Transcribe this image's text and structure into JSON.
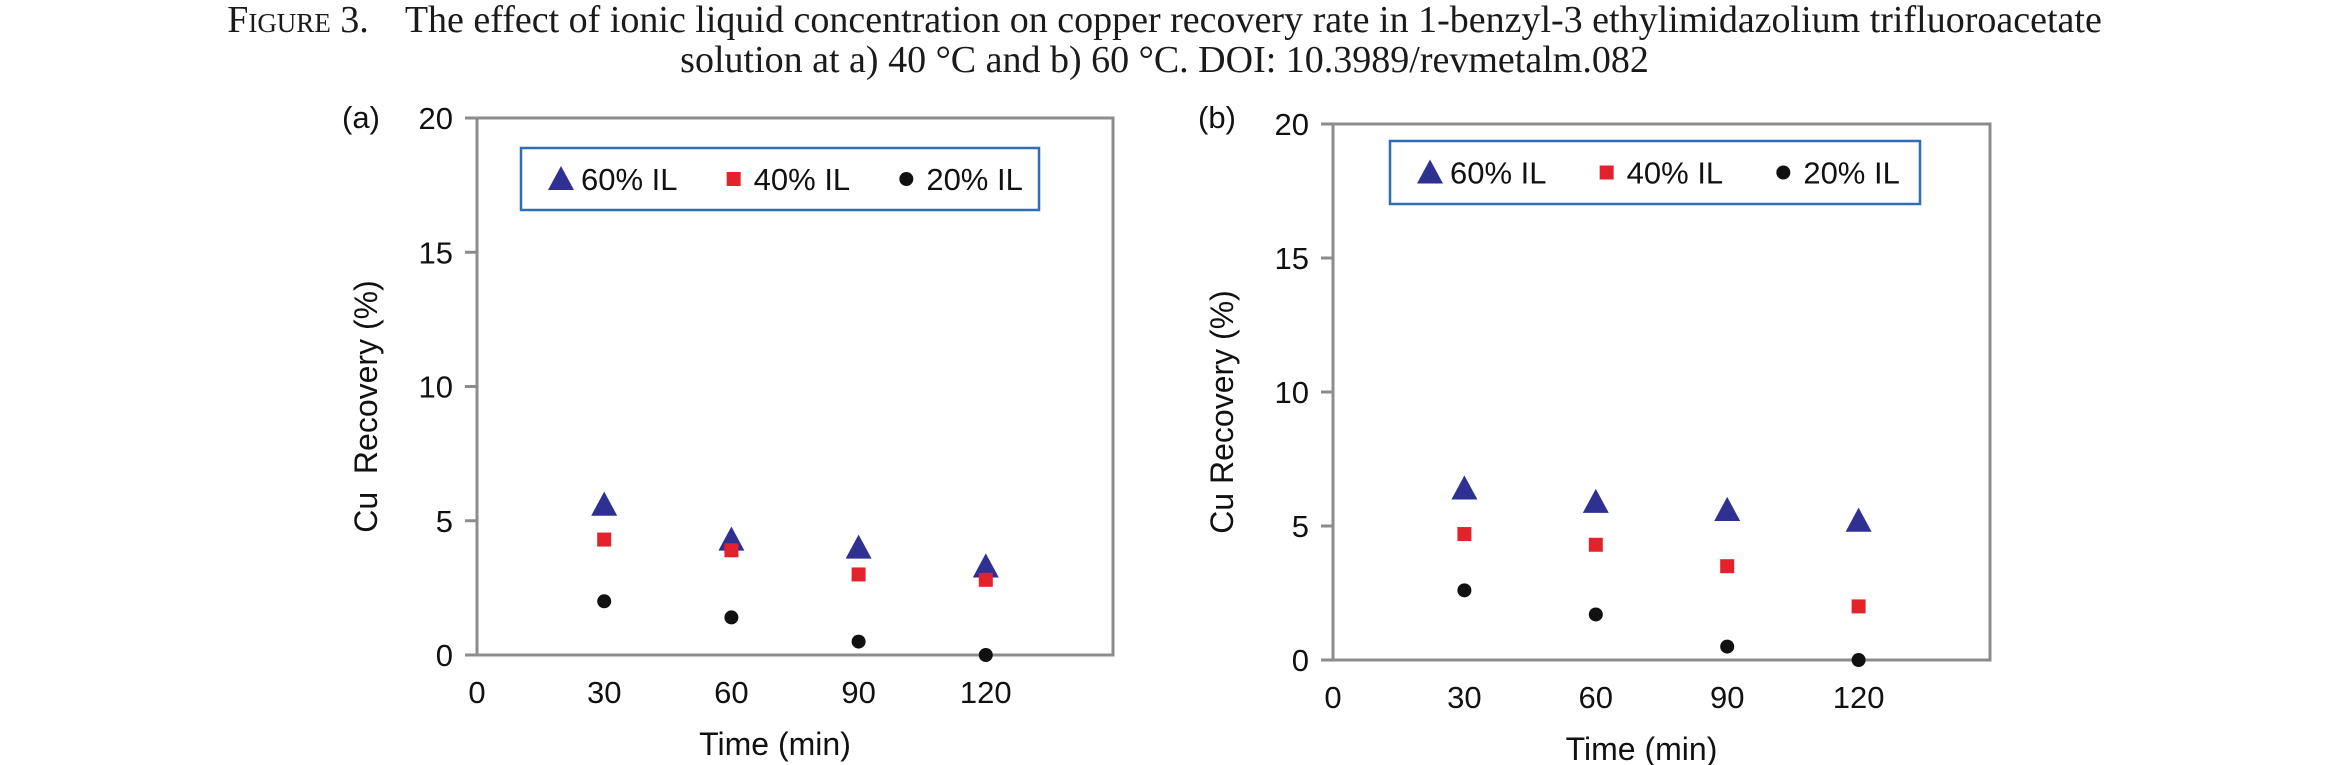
{
  "caption": {
    "label": "Figure 3.",
    "line1": "The effect of ionic liquid concentration on copper recovery rate in 1-benzyl-3 ethylimidazolium trifluoroacetate",
    "line2": "solution at a) 40 °C and b) 60 °C. DOI: 10.3989/revmetalm.082"
  },
  "colors": {
    "triangle": "#2e3192",
    "square": "#e3222c",
    "circle": "#111111",
    "axis": "#8c8c8c",
    "legend_border": "#2f6db4"
  },
  "chart_data": [
    {
      "type": "scatter",
      "panel_label": "(a)",
      "xlabel": "Time (min)",
      "ylabel": "Cu  Recovery (%)",
      "xlim": [
        0,
        150
      ],
      "ylim": [
        0,
        20
      ],
      "x_ticks": [
        "0",
        "30",
        "60",
        "90",
        "120"
      ],
      "y_ticks": [
        "0",
        "5",
        "10",
        "15",
        "20"
      ],
      "legend": "top, inside plot",
      "series": [
        {
          "name": "60% IL",
          "marker": "triangle",
          "x": [
            30,
            60,
            90,
            120
          ],
          "y": [
            5.6,
            4.3,
            4.0,
            3.3
          ]
        },
        {
          "name": "40% IL",
          "marker": "square",
          "x": [
            30,
            60,
            90,
            120
          ],
          "y": [
            4.3,
            3.9,
            3.0,
            2.8
          ]
        },
        {
          "name": "20% IL",
          "marker": "circle",
          "x": [
            30,
            60,
            90,
            120
          ],
          "y": [
            2.0,
            1.4,
            0.5,
            0.0
          ]
        }
      ]
    },
    {
      "type": "scatter",
      "panel_label": "(b)",
      "xlabel": "Time (min)",
      "ylabel": "Cu Recovery (%)",
      "xlim": [
        0,
        150
      ],
      "ylim": [
        0,
        20
      ],
      "x_ticks": [
        "0",
        "30",
        "60",
        "90",
        "120"
      ],
      "y_ticks": [
        "0",
        "5",
        "10",
        "15",
        "20"
      ],
      "legend": "top, inside plot",
      "series": [
        {
          "name": "60% IL",
          "marker": "triangle",
          "x": [
            30,
            60,
            90,
            120
          ],
          "y": [
            6.4,
            5.9,
            5.6,
            5.2
          ]
        },
        {
          "name": "40% IL",
          "marker": "square",
          "x": [
            30,
            60,
            90,
            120
          ],
          "y": [
            4.7,
            4.3,
            3.5,
            2.0
          ]
        },
        {
          "name": "20% IL",
          "marker": "circle",
          "x": [
            30,
            60,
            90,
            120
          ],
          "y": [
            2.6,
            1.7,
            0.5,
            0.0
          ]
        }
      ]
    }
  ]
}
